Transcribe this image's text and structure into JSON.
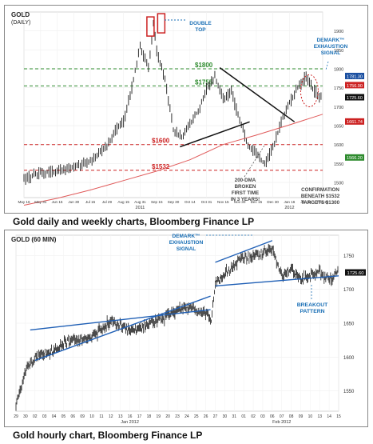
{
  "charts": [
    {
      "chart_data": {
        "type": "line",
        "title": "GOLD",
        "subtitle": "(DAILY)",
        "caption": "Gold daily and weekly charts, Bloomberg Finance LP",
        "xlabel": "",
        "ylabel": "",
        "ylim": [
          1460,
          1950
        ],
        "y_ticks": [
          1500,
          1550,
          1600,
          1650,
          1700,
          1750,
          1800,
          1850,
          1900
        ],
        "x_ticks": [
          "May 16",
          "May 31",
          "Jun 15",
          "Jun 30",
          "Jul 15",
          "Jul 29",
          "Aug 15",
          "Aug 31",
          "Sep 15",
          "Sep 30",
          "Oct 14",
          "Oct 31",
          "Nov 15",
          "Nov 30",
          "Dec 15",
          "Dec 30",
          "Jan 16",
          "Jan 31",
          "Feb 14"
        ],
        "x_years": [
          {
            "label": "2011",
            "at": 7
          },
          {
            "label": "2012",
            "at": 16
          }
        ],
        "series": [
          {
            "name": "Gold price",
            "role": "price",
            "color": "#1a1a1a",
            "x": [
              0,
              1,
              2,
              3,
              4,
              5,
              5.5,
              6,
              6.5,
              7,
              7.5,
              7.8,
              8,
              8.5,
              9,
              9.5,
              10,
              10.5,
              11,
              11.5,
              12,
              12.5,
              13,
              13.5,
              14,
              14.5,
              15,
              15.5,
              16,
              16.5,
              17,
              17.5,
              17.9
            ],
            "y": [
              1510,
              1525,
              1530,
              1540,
              1555,
              1595,
              1640,
              1660,
              1750,
              1860,
              1800,
              1920,
              1850,
              1770,
              1640,
              1620,
              1650,
              1690,
              1745,
              1780,
              1720,
              1740,
              1660,
              1600,
              1575,
              1550,
              1590,
              1660,
              1710,
              1750,
              1780,
              1740,
              1725
            ]
          },
          {
            "name": "200-DMA",
            "role": "dma",
            "color": "#e05a5a",
            "x": [
              0,
              2,
              4,
              6,
              8,
              10,
              12,
              14,
              16,
              18
            ],
            "y": [
              1440,
              1458,
              1480,
              1505,
              1530,
              1560,
              1600,
              1625,
              1652,
              1680
            ]
          }
        ],
        "levels": [
          {
            "label": "$1800",
            "value": 1800,
            "color": "#2e8b2e"
          },
          {
            "label": "$1755",
            "value": 1755,
            "color": "#2e8b2e"
          },
          {
            "label": "$1600",
            "value": 1600,
            "color": "#cc2222"
          },
          {
            "label": "$1532",
            "value": 1532,
            "color": "#cc2222"
          }
        ],
        "trendlines": [
          {
            "from": [
              11.8,
              1803
            ],
            "to": [
              16.3,
              1660
            ]
          },
          {
            "from": [
              9.4,
              1594
            ],
            "to": [
              13.6,
              1660
            ]
          }
        ],
        "price_tags": [
          {
            "label": "1781.30",
            "value": 1781,
            "color": "#1a4fa0"
          },
          {
            "label": "1756.90",
            "value": 1757,
            "color": "#cc2222"
          },
          {
            "label": "1725.60",
            "value": 1725,
            "color": "#111111"
          },
          {
            "label": "1661.74",
            "value": 1661,
            "color": "#cc2222"
          },
          {
            "label": "1566.20",
            "value": 1566,
            "color": "#2e8b2e"
          }
        ],
        "annotations": [
          {
            "id": "double-top",
            "lines": [
              "DOUBLE",
              "TOP"
            ],
            "color": "#1a6fb5"
          },
          {
            "id": "demark",
            "lines": [
              "DEMARK™",
              "EXHAUSTION",
              "SIGNAL"
            ],
            "color": "#1a6fb5"
          },
          {
            "id": "dma-broken",
            "lines": [
              "200-DMA",
              "BROKEN",
              "FIRST TIME",
              "IN 3 YEARS!"
            ],
            "color": "#444444"
          },
          {
            "id": "confirmation",
            "lines": [
              "CONFIRMATION",
              "BENEATH $1532",
              "TARGETS $1300"
            ],
            "color": "#444444"
          }
        ]
      }
    },
    {
      "chart_data": {
        "type": "line",
        "title": "GOLD (60 MIN)",
        "caption": "Gold hourly chart, Bloomberg Finance LP",
        "xlabel": "",
        "ylabel": "",
        "ylim": [
          1520,
          1780
        ],
        "y_ticks": [
          1550,
          1600,
          1650,
          1700,
          1750
        ],
        "x_ticks": [
          "29",
          "30",
          "02",
          "03",
          "04",
          "05",
          "06",
          "09",
          "10",
          "11",
          "12",
          "13",
          "16",
          "17",
          "18",
          "19",
          "20",
          "23",
          "24",
          "25",
          "26",
          "27",
          "30",
          "31",
          "01",
          "02",
          "03",
          "06",
          "07",
          "08",
          "09",
          "10",
          "13",
          "14",
          "15"
        ],
        "x_months": [
          {
            "label": "Jan 2012",
            "at": 12
          },
          {
            "label": "Feb 2012",
            "at": 28
          }
        ],
        "series": [
          {
            "name": "Gold price",
            "role": "price",
            "color": "#1a1a1a",
            "x": [
              0,
              0.5,
              1,
              2,
              3,
              4,
              5,
              6,
              7,
              8,
              9,
              10,
              11,
              12,
              13,
              14,
              15,
              16,
              17,
              18,
              19,
              20,
              20.6,
              21,
              22,
              23,
              24,
              25,
              26,
              27,
              28,
              29,
              30,
              31,
              32,
              33,
              34
            ],
            "y": [
              1525,
              1555,
              1578,
              1600,
              1605,
              1610,
              1620,
              1625,
              1625,
              1630,
              1640,
              1655,
              1648,
              1640,
              1640,
              1650,
              1655,
              1660,
              1670,
              1672,
              1670,
              1665,
              1655,
              1710,
              1723,
              1735,
              1748,
              1748,
              1755,
              1760,
              1720,
              1730,
              1715,
              1720,
              1725,
              1715,
              1725
            ]
          }
        ],
        "trendlines": [
          {
            "from": [
              2,
              1595
            ],
            "to": [
              20.5,
              1690
            ]
          },
          {
            "from": [
              1.5,
              1640
            ],
            "to": [
              20.5,
              1670
            ]
          },
          {
            "from": [
              21,
              1740
            ],
            "to": [
              27,
              1772
            ]
          },
          {
            "from": [
              21,
              1705
            ],
            "to": [
              34,
              1720
            ]
          }
        ],
        "price_tags": [
          {
            "label": "1725.60",
            "value": 1725,
            "color": "#111111"
          }
        ],
        "annotations": [
          {
            "id": "demark",
            "lines": [
              "DEMARK™",
              "EXHAUSTION",
              "SIGNAL"
            ],
            "color": "#1a6fb5"
          },
          {
            "id": "breakout",
            "lines": [
              "BREAKOUT",
              "PATTERN"
            ],
            "color": "#1a6fb5"
          }
        ]
      }
    }
  ]
}
